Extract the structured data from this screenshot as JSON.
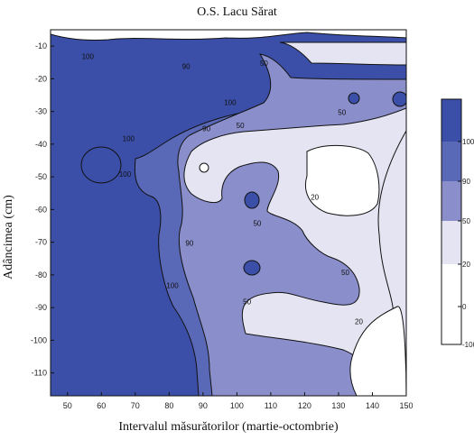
{
  "chart_data": {
    "type": "contour",
    "title": "O.S. Lacu Sărat",
    "xlabel": "Intervalul măsurătorilor (martie-octombrie)",
    "ylabel": "Adâncimea (cm)",
    "xlim": [
      45,
      150
    ],
    "ylim": [
      -117,
      -5
    ],
    "x_ticks": [
      50,
      60,
      70,
      80,
      90,
      100,
      110,
      120,
      130,
      140,
      150
    ],
    "y_ticks": [
      -10,
      -20,
      -30,
      -40,
      -50,
      -60,
      -70,
      -80,
      -90,
      -100,
      -110
    ],
    "grid": false,
    "contour_levels": [
      {
        "range": "> 100",
        "color": "#3b4fa8"
      },
      {
        "range": "90 – 100",
        "color": "#5a68b8"
      },
      {
        "range": "50 – 90",
        "color": "#8a8fcc"
      },
      {
        "range": "20 – 50",
        "color": "#e4e4f2"
      },
      {
        "range": "< 20",
        "color": "#ffffff"
      }
    ],
    "contour_labels": [
      {
        "text": "100",
        "x": 56,
        "y": -14
      },
      {
        "text": "90",
        "x": 85,
        "y": -17
      },
      {
        "text": "50",
        "x": 108,
        "y": -16
      },
      {
        "text": "100",
        "x": 98,
        "y": -28
      },
      {
        "text": "50",
        "x": 131,
        "y": -31
      },
      {
        "text": "90",
        "x": 91,
        "y": -36
      },
      {
        "text": "50",
        "x": 101,
        "y": -35
      },
      {
        "text": "100",
        "x": 68,
        "y": -39
      },
      {
        "text": "100",
        "x": 67,
        "y": -50
      },
      {
        "text": "20",
        "x": 123,
        "y": -57
      },
      {
        "text": "50",
        "x": 106,
        "y": -65
      },
      {
        "text": "90",
        "x": 86,
        "y": -71
      },
      {
        "text": "50",
        "x": 132,
        "y": -80
      },
      {
        "text": "100",
        "x": 81,
        "y": -84
      },
      {
        "text": "50",
        "x": 103,
        "y": -89
      },
      {
        "text": "20",
        "x": 136,
        "y": -95
      }
    ],
    "colorbar": {
      "placement": "right",
      "labels": [
        "100",
        "90",
        "50",
        "20",
        "0",
        "-100"
      ]
    }
  }
}
